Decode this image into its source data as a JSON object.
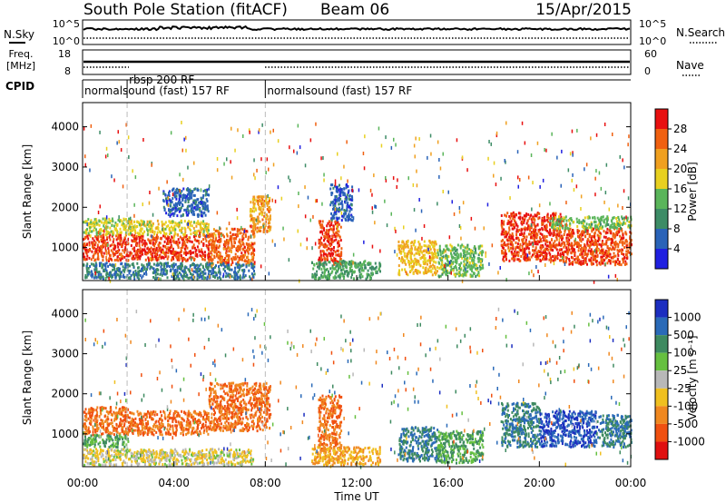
{
  "header": {
    "station": "South Pole Station (fitACF)",
    "beam": "Beam 06",
    "date": "15/Apr/2015"
  },
  "aux_panels": {
    "nsky": {
      "label": "N.Sky",
      "ticks": [
        "10^5",
        "10^0"
      ],
      "right_label": "N.Search",
      "right_ticks": [
        "10^5",
        "10^0"
      ]
    },
    "freq": {
      "label_top": "Freq.",
      "label_bottom": "[MHz]",
      "ticks": [
        "18",
        "8"
      ],
      "right_label": "Nave",
      "right_ticks": [
        "60",
        "0"
      ]
    },
    "cpid": {
      "label": "CPID"
    }
  },
  "cpid_segments": [
    {
      "start": 0.0,
      "label": "normalsound (fast) 157 RF",
      "row": 1
    },
    {
      "start": 1.95,
      "label": "rbsp 200 RF",
      "row": 0
    },
    {
      "start": 8.0,
      "label": "normalsound (fast) 157 RF",
      "row": 1
    }
  ],
  "axes": {
    "x_ticks": [
      "00:00",
      "04:00",
      "08:00",
      "12:00",
      "16:00",
      "20:00",
      "00:00"
    ],
    "x_label": "Time UT",
    "y_ticks": [
      "1000",
      "2000",
      "3000",
      "4000"
    ],
    "y_label": "Slant Range [km]",
    "x_range_hours": [
      0,
      24
    ],
    "y_range_km": [
      180,
      4600
    ]
  },
  "colorbars": {
    "power": {
      "label": "Power [dB]",
      "ticks": [
        "4",
        "8",
        "12",
        "16",
        "20",
        "24",
        "28"
      ],
      "colors": [
        "#2020e0",
        "#2a63b8",
        "#3d8c66",
        "#5ab55a",
        "#e8d020",
        "#f0a020",
        "#f06010",
        "#e81010"
      ]
    },
    "velocity": {
      "label": "Velocity [m s⁻¹]",
      "ticks": [
        "1000",
        "500",
        "100",
        "25",
        "-25",
        "-100",
        "-500",
        "-1000"
      ],
      "colors": [
        "#1c2ec0",
        "#2a6ab8",
        "#3e8a60",
        "#66c040",
        "#b8b8b8",
        "#f0c020",
        "#f08820",
        "#f05010",
        "#e01010"
      ]
    }
  },
  "chart_data": [
    {
      "type": "heatmap",
      "title": "Power",
      "xlabel": "Time UT",
      "ylabel": "Slant Range [km]",
      "colorbar_label": "Power [dB]",
      "x_unit": "hours UT",
      "ylim": [
        180,
        4600
      ],
      "regions": [
        {
          "t": [
            0.0,
            2.0
          ],
          "r": [
            700,
            1350
          ],
          "value": 28
        },
        {
          "t": [
            0.0,
            2.0
          ],
          "r": [
            1350,
            1750
          ],
          "value": 17
        },
        {
          "t": [
            2.0,
            5.5
          ],
          "r": [
            700,
            1350
          ],
          "value": 28
        },
        {
          "t": [
            2.0,
            5.5
          ],
          "r": [
            1350,
            1700
          ],
          "value": 18
        },
        {
          "t": [
            5.5,
            7.5
          ],
          "r": [
            600,
            1500
          ],
          "value": 26
        },
        {
          "t": [
            7.3,
            8.2
          ],
          "r": [
            1400,
            2300
          ],
          "value": 22
        },
        {
          "t": [
            0.0,
            7.5
          ],
          "r": [
            250,
            650
          ],
          "value": 8
        },
        {
          "t": [
            3.5,
            5.5
          ],
          "r": [
            1800,
            2500
          ],
          "value": 6
        },
        {
          "t": [
            10.3,
            11.3
          ],
          "r": [
            600,
            1700
          ],
          "value": 28
        },
        {
          "t": [
            10.8,
            11.8
          ],
          "r": [
            1700,
            2600
          ],
          "value": 6
        },
        {
          "t": [
            10.0,
            13.0
          ],
          "r": [
            250,
            700
          ],
          "value": 12
        },
        {
          "t": [
            13.8,
            15.5
          ],
          "r": [
            350,
            1200
          ],
          "value": 20
        },
        {
          "t": [
            15.5,
            17.5
          ],
          "r": [
            300,
            1100
          ],
          "value": 14
        },
        {
          "t": [
            18.3,
            21.0
          ],
          "r": [
            700,
            1900
          ],
          "value": 28
        },
        {
          "t": [
            21.0,
            24.0
          ],
          "r": [
            600,
            1500
          ],
          "value": 27
        },
        {
          "t": [
            20.5,
            24.0
          ],
          "r": [
            1500,
            1800
          ],
          "value": 14
        }
      ]
    },
    {
      "type": "heatmap",
      "title": "Velocity",
      "xlabel": "Time UT",
      "ylabel": "Slant Range [km]",
      "colorbar_label": "Velocity [m s⁻¹]",
      "x_unit": "hours UT",
      "ylim": [
        180,
        4600
      ],
      "regions": [
        {
          "t": [
            0.0,
            2.0
          ],
          "r": [
            1000,
            1700
          ],
          "value": -500
        },
        {
          "t": [
            0.0,
            2.0
          ],
          "r": [
            700,
            1000
          ],
          "value": 100
        },
        {
          "t": [
            2.0,
            5.5
          ],
          "r": [
            1000,
            1600
          ],
          "value": -500
        },
        {
          "t": [
            5.5,
            8.2
          ],
          "r": [
            1100,
            2300
          ],
          "value": -500
        },
        {
          "t": [
            0.0,
            7.5
          ],
          "r": [
            250,
            650
          ],
          "value": -25
        },
        {
          "t": [
            10.3,
            11.3
          ],
          "r": [
            600,
            2000
          ],
          "value": -500
        },
        {
          "t": [
            10.0,
            13.0
          ],
          "r": [
            250,
            700
          ],
          "value": -100
        },
        {
          "t": [
            13.8,
            15.5
          ],
          "r": [
            350,
            1200
          ],
          "value": 500
        },
        {
          "t": [
            15.5,
            17.5
          ],
          "r": [
            300,
            1100
          ],
          "value": 100
        },
        {
          "t": [
            18.3,
            20.0
          ],
          "r": [
            700,
            1800
          ],
          "value": 500
        },
        {
          "t": [
            20.0,
            22.5
          ],
          "r": [
            700,
            1600
          ],
          "value": 1000
        },
        {
          "t": [
            22.5,
            24.0
          ],
          "r": [
            700,
            1500
          ],
          "value": 500
        }
      ]
    }
  ]
}
